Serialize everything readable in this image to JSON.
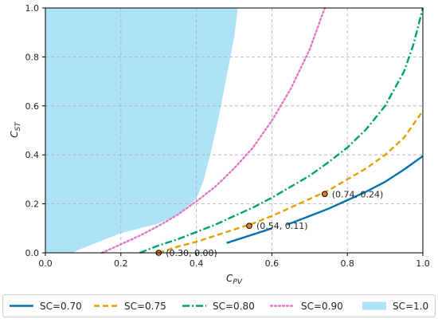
{
  "chart_data": {
    "type": "line",
    "xlabel": "C",
    "xlabel_sub": "PV",
    "ylabel": "C",
    "ylabel_sub": "ST",
    "xlim": [
      0.0,
      1.0
    ],
    "ylim": [
      0.0,
      1.0
    ],
    "grid": true,
    "legend_position": "bottom",
    "x_ticks": [
      {
        "value": 0.0,
        "label": "0.0"
      },
      {
        "value": 0.2,
        "label": "0.2"
      },
      {
        "value": 0.4,
        "label": "0.4"
      },
      {
        "value": 0.6,
        "label": "0.6"
      },
      {
        "value": 0.8,
        "label": "0.8"
      },
      {
        "value": 1.0,
        "label": "1.0"
      }
    ],
    "y_ticks": [
      {
        "value": 0.0,
        "label": "0.0"
      },
      {
        "value": 0.2,
        "label": "0.2"
      },
      {
        "value": 0.4,
        "label": "0.4"
      },
      {
        "value": 0.6,
        "label": "0.6"
      },
      {
        "value": 0.8,
        "label": "0.8"
      },
      {
        "value": 1.0,
        "label": "1.0"
      }
    ],
    "series": [
      {
        "name": "SC=0.70",
        "color": "#0072b2",
        "style": "solid",
        "segments": [
          [
            [
              0.48,
              0.04
            ],
            [
              0.55,
              0.075
            ],
            [
              0.6,
              0.1
            ]
          ],
          [
            [
              0.64,
              0.115
            ],
            [
              0.7,
              0.15
            ],
            [
              0.75,
              0.18
            ],
            [
              0.8,
              0.215
            ],
            [
              0.85,
              0.25
            ],
            [
              0.9,
              0.29
            ],
            [
              0.95,
              0.34
            ],
            [
              1.0,
              0.395
            ]
          ]
        ]
      },
      {
        "name": "SC=0.75",
        "color": "#e69f00",
        "style": "dashed",
        "segments": [
          [
            [
              0.3,
              0.0
            ],
            [
              0.35,
              0.025
            ],
            [
              0.4,
              0.045
            ],
            [
              0.45,
              0.07
            ],
            [
              0.5,
              0.095
            ],
            [
              0.55,
              0.12
            ],
            [
              0.6,
              0.15
            ],
            [
              0.65,
              0.185
            ],
            [
              0.7,
              0.22
            ],
            [
              0.75,
              0.255
            ],
            [
              0.8,
              0.3
            ],
            [
              0.85,
              0.345
            ],
            [
              0.9,
              0.4
            ],
            [
              0.95,
              0.47
            ],
            [
              1.0,
              0.58
            ]
          ]
        ]
      },
      {
        "name": "SC=0.80",
        "color": "#009e73",
        "style": "dashdot",
        "segments": [
          [
            [
              0.25,
              0.0
            ],
            [
              0.3,
              0.03
            ],
            [
              0.35,
              0.055
            ],
            [
              0.4,
              0.085
            ],
            [
              0.45,
              0.115
            ],
            [
              0.5,
              0.15
            ],
            [
              0.55,
              0.185
            ],
            [
              0.6,
              0.225
            ],
            [
              0.65,
              0.27
            ],
            [
              0.7,
              0.315
            ],
            [
              0.75,
              0.37
            ],
            [
              0.8,
              0.43
            ],
            [
              0.85,
              0.505
            ],
            [
              0.9,
              0.6
            ],
            [
              0.95,
              0.74
            ],
            [
              0.975,
              0.85
            ],
            [
              1.0,
              1.0
            ]
          ]
        ]
      },
      {
        "name": "SC=0.90",
        "color": "#e377c2",
        "style": "dotted",
        "segments": [
          [
            [
              0.15,
              0.0
            ],
            [
              0.2,
              0.035
            ],
            [
              0.25,
              0.07
            ],
            [
              0.3,
              0.11
            ],
            [
              0.35,
              0.155
            ],
            [
              0.4,
              0.21
            ],
            [
              0.45,
              0.27
            ],
            [
              0.5,
              0.345
            ],
            [
              0.55,
              0.43
            ],
            [
              0.6,
              0.54
            ],
            [
              0.65,
              0.67
            ],
            [
              0.7,
              0.83
            ],
            [
              0.74,
              1.0
            ]
          ]
        ]
      }
    ],
    "area": {
      "name": "SC=1.0",
      "color": "#aee2f7",
      "polygon": [
        [
          0.0,
          0.0
        ],
        [
          0.07,
          0.0
        ],
        [
          0.1,
          0.02
        ],
        [
          0.15,
          0.05
        ],
        [
          0.2,
          0.08
        ],
        [
          0.25,
          0.1
        ],
        [
          0.3,
          0.12
        ],
        [
          0.35,
          0.155
        ],
        [
          0.4,
          0.22
        ],
        [
          0.42,
          0.3
        ],
        [
          0.44,
          0.42
        ],
        [
          0.46,
          0.56
        ],
        [
          0.48,
          0.72
        ],
        [
          0.5,
          0.88
        ],
        [
          0.51,
          1.0
        ],
        [
          0.0,
          1.0
        ]
      ]
    },
    "annotations": [
      {
        "x": 0.3,
        "y": 0.0,
        "label": "(0.30, 0.00)"
      },
      {
        "x": 0.54,
        "y": 0.11,
        "label": "(0.54, 0.11)"
      },
      {
        "x": 0.74,
        "y": 0.24,
        "label": "(0.74, 0.24)"
      }
    ],
    "legend": [
      {
        "label": "SC=0.70",
        "color": "#0072b2",
        "style": "solid"
      },
      {
        "label": "SC=0.75",
        "color": "#e69f00",
        "style": "dashed"
      },
      {
        "label": "SC=0.80",
        "color": "#009e73",
        "style": "dashdot"
      },
      {
        "label": "SC=0.90",
        "color": "#e377c2",
        "style": "dotted"
      },
      {
        "label": "SC=1.0",
        "color": "#aee2f7",
        "style": "patch"
      }
    ]
  }
}
